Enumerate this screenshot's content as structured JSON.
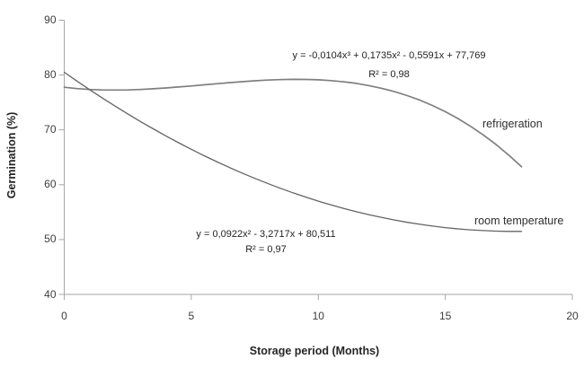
{
  "figure": {
    "background_color": "#ffffff",
    "axis_color": "#a6a6a6",
    "text_color": "#262626"
  },
  "chart_data": {
    "type": "line",
    "title": "",
    "xlabel": "Storage period (Months)",
    "ylabel": "Germination (%)",
    "xlim": [
      0,
      20
    ],
    "ylim": [
      40,
      90
    ],
    "x_ticks": [
      0,
      5,
      10,
      15,
      20
    ],
    "y_ticks": [
      40,
      50,
      60,
      70,
      80,
      90
    ],
    "grid": false,
    "legend_position": "inline-labels",
    "series": [
      {
        "name": "refrigeration",
        "color": "#7f7f7f",
        "stroke_width": 1.7,
        "trendline_equation": "y = -0,0104x³ + 0,1735x² - 0,5591x + 77,769",
        "r_squared": "R² = 0,98",
        "x": [
          0,
          0.5,
          1,
          1.5,
          2,
          2.5,
          3,
          3.5,
          4,
          4.5,
          5,
          5.5,
          6,
          6.5,
          7,
          7.5,
          8,
          8.5,
          9,
          9.5,
          10,
          10.5,
          11,
          11.5,
          12,
          12.5,
          13,
          13.5,
          14,
          14.5,
          15,
          15.5,
          16,
          16.5,
          17,
          17.5,
          18
        ],
        "y": [
          77.77,
          77.53,
          77.37,
          77.29,
          77.26,
          77.29,
          77.37,
          77.49,
          77.64,
          77.82,
          78.01,
          78.21,
          78.41,
          78.61,
          78.79,
          78.95,
          79.08,
          79.17,
          79.21,
          79.2,
          79.13,
          78.99,
          78.77,
          78.47,
          78.07,
          77.58,
          76.97,
          76.25,
          75.41,
          74.43,
          73.32,
          72.06,
          70.64,
          69.06,
          67.31,
          65.38,
          63.27
        ]
      },
      {
        "name": "room temperature",
        "color": "#646464",
        "stroke_width": 1.3,
        "trendline_equation": "y = 0,0922x² - 3,2717x + 80,511",
        "r_squared": "R² = 0,97",
        "x": [
          0,
          0.5,
          1,
          1.5,
          2,
          2.5,
          3,
          3.5,
          4,
          4.5,
          5,
          5.5,
          6,
          6.5,
          7,
          7.5,
          8,
          8.5,
          9,
          9.5,
          10,
          10.5,
          11,
          11.5,
          12,
          12.5,
          13,
          13.5,
          14,
          14.5,
          15,
          15.5,
          16,
          16.5,
          17,
          17.5,
          18
        ],
        "y": [
          80.51,
          78.9,
          77.33,
          75.81,
          74.34,
          72.91,
          71.53,
          70.19,
          68.9,
          67.66,
          66.46,
          65.31,
          64.2,
          63.14,
          62.13,
          61.16,
          60.24,
          59.36,
          58.53,
          57.75,
          57.01,
          56.32,
          55.68,
          55.08,
          54.53,
          54.02,
          53.56,
          53.15,
          52.78,
          52.46,
          52.18,
          51.95,
          51.77,
          51.63,
          51.54,
          51.49,
          51.49
        ]
      }
    ]
  }
}
